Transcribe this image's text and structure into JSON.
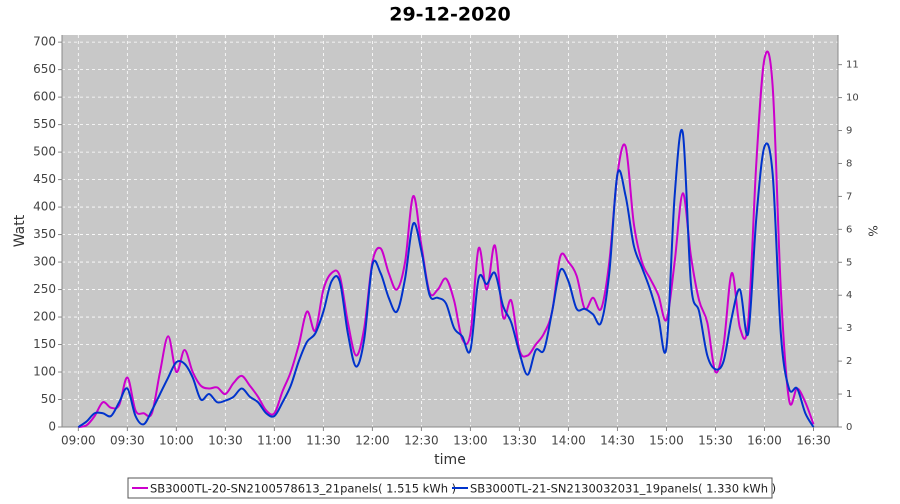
{
  "chart_data": {
    "type": "line",
    "title": "29-12-2020",
    "x_label": "time",
    "y_label": "Watt",
    "y2_label": "%",
    "x": [
      "09:00",
      "09:05",
      "09:10",
      "09:15",
      "09:20",
      "09:25",
      "09:30",
      "09:35",
      "09:40",
      "09:45",
      "09:50",
      "09:55",
      "10:00",
      "10:05",
      "10:10",
      "10:15",
      "10:20",
      "10:25",
      "10:30",
      "10:35",
      "10:40",
      "10:45",
      "10:50",
      "10:55",
      "11:00",
      "11:05",
      "11:10",
      "11:15",
      "11:20",
      "11:25",
      "11:30",
      "11:35",
      "11:40",
      "11:45",
      "11:50",
      "11:55",
      "12:00",
      "12:05",
      "12:10",
      "12:15",
      "12:20",
      "12:25",
      "12:30",
      "12:35",
      "12:40",
      "12:45",
      "12:50",
      "12:55",
      "13:00",
      "13:05",
      "13:10",
      "13:15",
      "13:20",
      "13:25",
      "13:30",
      "13:35",
      "13:40",
      "13:45",
      "13:50",
      "13:55",
      "14:00",
      "14:05",
      "14:10",
      "14:15",
      "14:20",
      "14:25",
      "14:30",
      "14:35",
      "14:40",
      "14:45",
      "14:50",
      "14:55",
      "15:00",
      "15:05",
      "15:10",
      "15:15",
      "15:20",
      "15:25",
      "15:30",
      "15:35",
      "15:40",
      "15:45",
      "15:50",
      "15:55",
      "16:00",
      "16:05",
      "16:10",
      "16:15",
      "16:20",
      "16:25",
      "16:30"
    ],
    "series": [
      {
        "name": "SB3000TL-20-SN2100578613_21panels( 1.515 kWh )",
        "color": "#cc00cc",
        "values": [
          0,
          3,
          20,
          45,
          35,
          40,
          90,
          30,
          25,
          25,
          100,
          165,
          100,
          140,
          100,
          75,
          70,
          72,
          60,
          80,
          93,
          75,
          55,
          30,
          25,
          65,
          100,
          150,
          210,
          175,
          250,
          280,
          275,
          190,
          130,
          180,
          300,
          325,
          280,
          250,
          300,
          420,
          330,
          245,
          250,
          270,
          230,
          160,
          170,
          325,
          250,
          330,
          200,
          230,
          140,
          130,
          150,
          170,
          210,
          310,
          300,
          275,
          215,
          235,
          215,
          300,
          460,
          510,
          370,
          300,
          270,
          240,
          195,
          300,
          425,
          310,
          230,
          190,
          100,
          150,
          280,
          180,
          190,
          480,
          670,
          620,
          250,
          50,
          70,
          45,
          5
        ]
      },
      {
        "name": "SB3000TL-21-SN2130032031_19panels( 1.330 kWh )",
        "color": "#0033cc",
        "values": [
          0,
          10,
          25,
          25,
          20,
          45,
          70,
          20,
          5,
          30,
          60,
          90,
          118,
          115,
          90,
          50,
          60,
          45,
          48,
          55,
          70,
          55,
          45,
          25,
          20,
          45,
          75,
          120,
          155,
          170,
          210,
          265,
          265,
          170,
          110,
          160,
          295,
          280,
          235,
          210,
          270,
          370,
          320,
          240,
          235,
          225,
          180,
          165,
          140,
          270,
          260,
          280,
          220,
          190,
          135,
          95,
          140,
          140,
          210,
          285,
          265,
          215,
          215,
          205,
          190,
          280,
          460,
          420,
          330,
          290,
          250,
          200,
          145,
          420,
          535,
          260,
          210,
          130,
          105,
          120,
          200,
          250,
          170,
          380,
          510,
          460,
          170,
          70,
          70,
          25,
          0
        ]
      }
    ],
    "xlim": [
      "08:50",
      "16:45"
    ],
    "xticks": [
      "09:00",
      "09:30",
      "10:00",
      "10:30",
      "11:00",
      "11:30",
      "12:00",
      "12:30",
      "13:00",
      "13:30",
      "14:00",
      "14:30",
      "15:00",
      "15:30",
      "16:00",
      "16:30"
    ],
    "ylim": [
      0,
      713
    ],
    "yticks": [
      0,
      50,
      100,
      150,
      200,
      250,
      300,
      350,
      400,
      450,
      500,
      550,
      600,
      650,
      700
    ],
    "y2lim": [
      0,
      11.9
    ],
    "y2ticks": [
      0,
      1,
      2,
      3,
      4,
      5,
      6,
      7,
      8,
      9,
      10,
      11
    ],
    "grid": true
  }
}
